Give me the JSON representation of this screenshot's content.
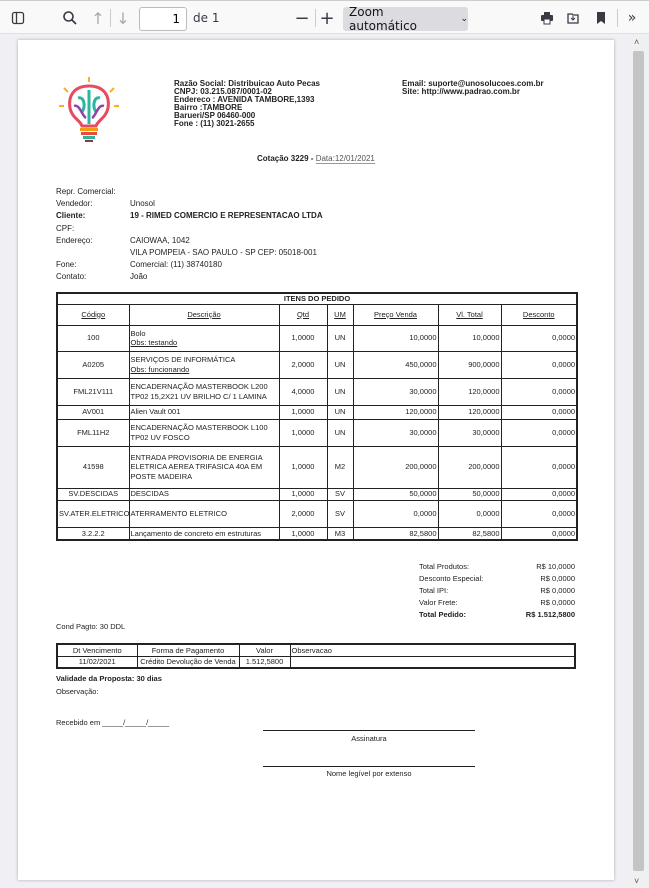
{
  "toolbar": {
    "page_number": "1",
    "page_of": "de 1",
    "zoom": "Zoom automático",
    "icons": [
      "sidebar-toggle-icon",
      "search-icon",
      "arrow-up-icon",
      "arrow-down-icon",
      "minus-icon",
      "plus-icon",
      "chevron-down-icon",
      "print-icon",
      "save-icon",
      "bookmark-icon",
      "double-chevron-right-icon"
    ]
  },
  "company": {
    "razao": "Razão Social: Distribuicao Auto Pecas",
    "cnpj": "CNPJ: 03.215.087/0001-02",
    "endereco": "Endereco : AVENIDA TAMBORE,1393",
    "bairro": "Bairro :TAMBORE",
    "cidade": "Barueri/SP  06460-000",
    "fone": "Fone : (11)  3021-2655",
    "email": "Email: suporte@unosolucoes.com.br",
    "site": "Site: http://www.padrao.com.br"
  },
  "cotacao": {
    "title": "Cotação 3229 -",
    "data": "Data:12/01/2021"
  },
  "cliente": [
    {
      "label": "Repr. Comercial:",
      "value": ""
    },
    {
      "label": "Vendedor:",
      "value": "Unosol"
    },
    {
      "label": "Cliente:",
      "value": "19 - RIMED COMERCIO E REPRESENTACAO LTDA"
    },
    {
      "label": "CPF:",
      "value": ""
    },
    {
      "label": "Endereço:",
      "value": "CAIOWAA, 1042"
    },
    {
      "label": "",
      "value": "VILA POMPEIA - SAO PAULO - SP CEP: 05018-001"
    },
    {
      "label": "Fone:",
      "value": "Comercial: (11) 38740180"
    },
    {
      "label": "Contato:",
      "value": "João"
    }
  ],
  "items": {
    "title": "ITENS DO PEDIDO",
    "headers": [
      "Código",
      "Descrição",
      "Qtd",
      "UM",
      "Preço Venda",
      "Vl. Total",
      "Desconto"
    ],
    "rows": [
      {
        "codigo": "100",
        "descricao": "Bolo",
        "obs": "Obs: testando",
        "qtd": "1,0000",
        "um": "UN",
        "preco": "10,0000",
        "total": "10,0000",
        "desconto": "0,0000"
      },
      {
        "codigo": "A0205",
        "descricao": "SERVIÇOS DE INFORMÁTICA",
        "obs": "Obs: funcionando",
        "qtd": "2,0000",
        "um": "UN",
        "preco": "450,0000",
        "total": "900,0000",
        "desconto": "0,0000"
      },
      {
        "codigo": "FML21V111",
        "descricao": "ENCADERNAÇÃO MASTERBOOK L200 TP02 15,2X21 UV BRILHO C/ 1 LAMINA",
        "obs": "",
        "qtd": "4,0000",
        "um": "UN",
        "preco": "30,0000",
        "total": "120,0000",
        "desconto": "0,0000"
      },
      {
        "codigo": "AV001",
        "descricao": "Alien Vault 001",
        "obs": "",
        "qtd": "1,0000",
        "um": "UN",
        "preco": "120,0000",
        "total": "120,0000",
        "desconto": "0,0000"
      },
      {
        "codigo": "FML11H2",
        "descricao": "ENCADERNAÇÃO MASTERBOOK L100 TP02 UV FOSCO",
        "obs": "",
        "qtd": "1,0000",
        "um": "UN",
        "preco": "30,0000",
        "total": "30,0000",
        "desconto": "0,0000"
      },
      {
        "codigo": "41598",
        "descricao": "ENTRADA PROVISORIA DE ENERGIA ELETRICA AEREA TRIFASICA 40A EM POSTE MADEIRA",
        "obs": "",
        "qtd": "1,0000",
        "um": "M2",
        "preco": "200,0000",
        "total": "200,0000",
        "desconto": "0,0000"
      },
      {
        "codigo": "SV.DESCIDAS",
        "descricao": "DESCIDAS",
        "obs": "",
        "qtd": "1,0000",
        "um": "SV",
        "preco": "50,0000",
        "total": "50,0000",
        "desconto": "0,0000"
      },
      {
        "codigo": "SV.ATER.ELETRICO",
        "descricao": "ATERRAMENTO ELETRICO",
        "obs": "",
        "qtd": "2,0000",
        "um": "SV",
        "preco": "0,0000",
        "total": "0,0000",
        "desconto": "0,0000"
      },
      {
        "codigo": "3.2.2.2",
        "descricao": "Lançamento de concreto em estruturas",
        "obs": "",
        "qtd": "1,0000",
        "um": "M3",
        "preco": "82,5800",
        "total": "82,5800",
        "desconto": "0,0000"
      }
    ]
  },
  "totais": [
    {
      "label": "Total Produtos:",
      "value": "R$ 10,0000"
    },
    {
      "label": "Desconto Especial:",
      "value": "R$ 0,0000"
    },
    {
      "label": "Total IPI:",
      "value": "R$ 0,0000"
    },
    {
      "label": "Valor Frete:",
      "value": "R$ 0,0000"
    },
    {
      "label": "Total Pedido:",
      "value": "R$ 1.512,5800"
    }
  ],
  "cond_pagto": "Cond Pagto: 30 DDL",
  "pagamento": {
    "headers": [
      "Dt Vencimento",
      "Forma de Pagamento",
      "Valor",
      "Observacao"
    ],
    "row": [
      "11/02/2021",
      "Crédito Devolução de Venda",
      "1.512,5800",
      ""
    ]
  },
  "validade": "Validade da Proposta: 30 dias",
  "observacao": "Observação:",
  "recebido": "Recebido em _____/_____/_____",
  "assinatura": "Assinatura",
  "nome_legivel": "Nome legível por extenso"
}
